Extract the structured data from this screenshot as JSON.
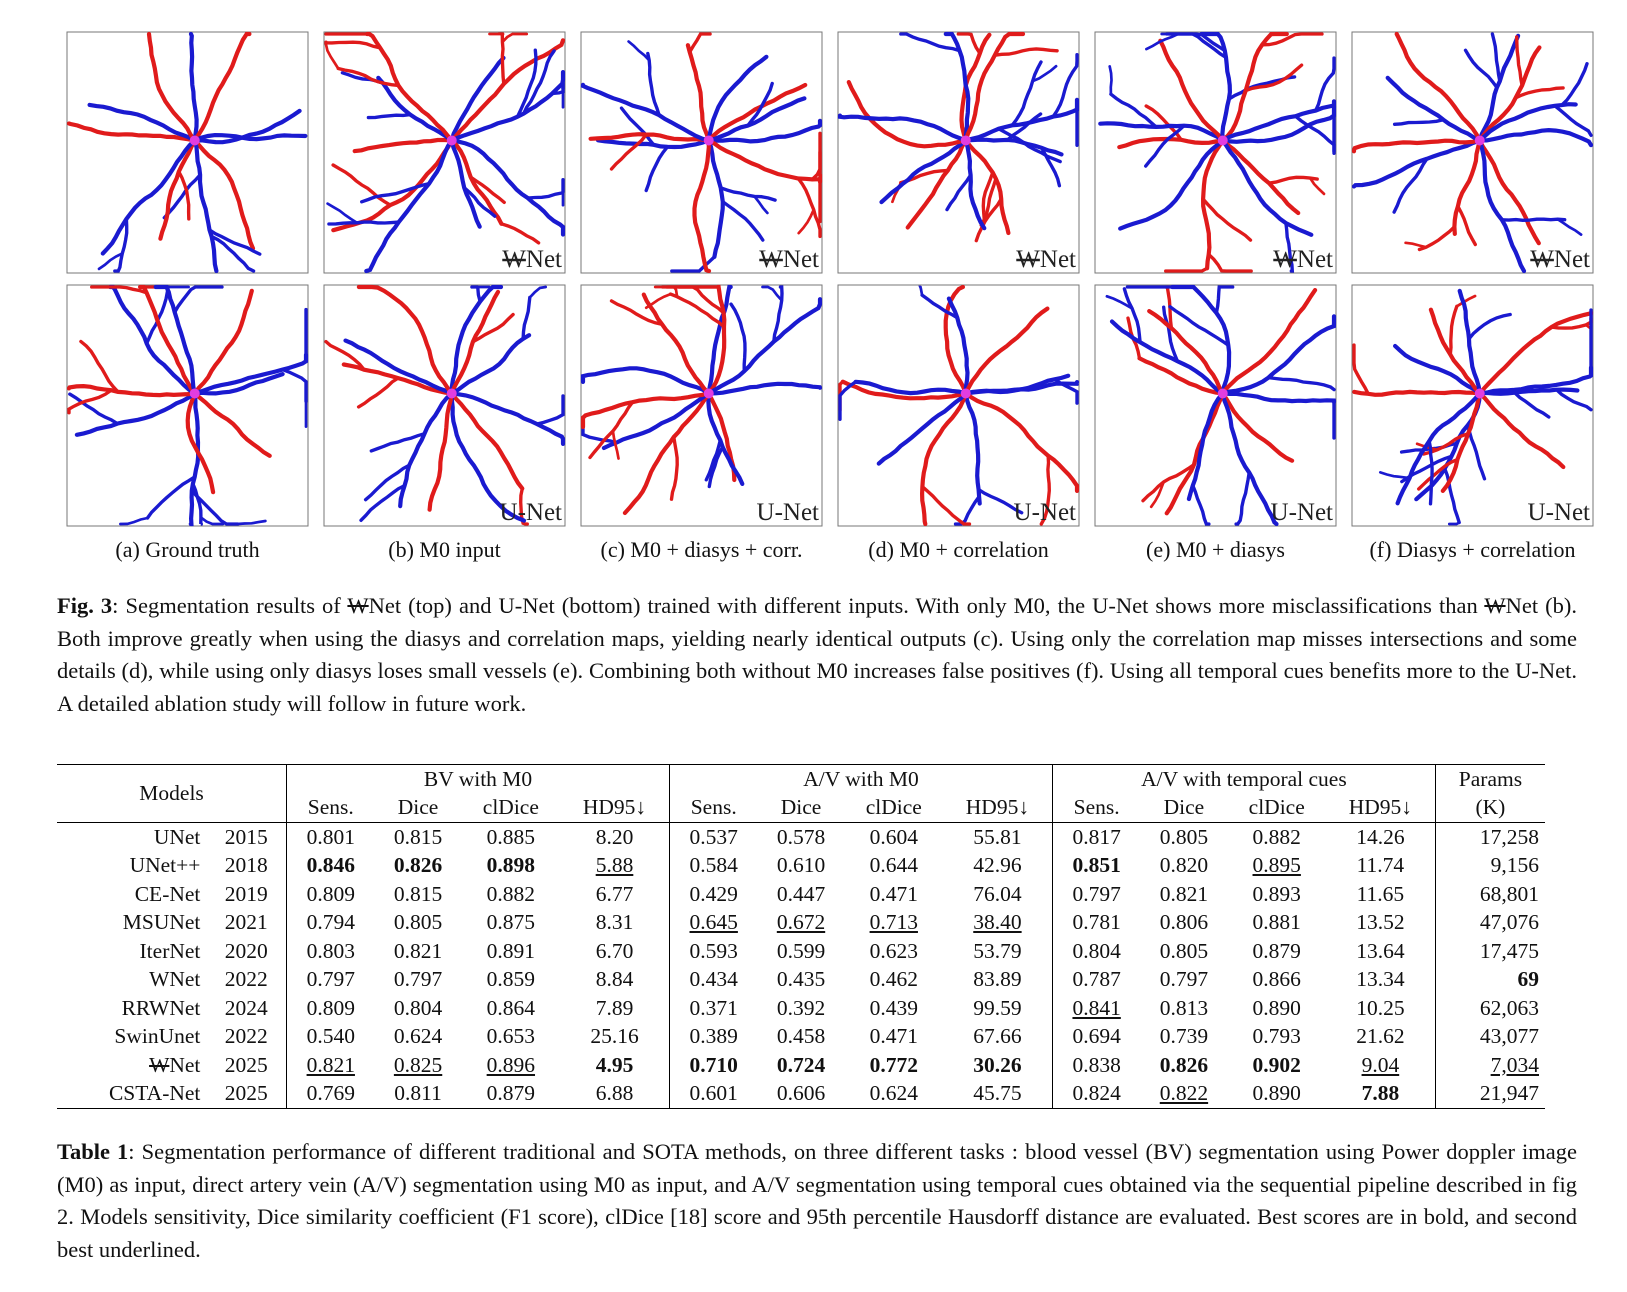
{
  "figure": {
    "panels": [
      {
        "caption": "(a) Ground truth"
      },
      {
        "caption": "(b) M0 input"
      },
      {
        "caption": "(c) M0 + diasys + corr."
      },
      {
        "caption": "(d) M0 + correlation"
      },
      {
        "caption": "(e) M0 + diasys"
      },
      {
        "caption": "(f) Diasys + correlation"
      }
    ],
    "labels": {
      "top": {
        "struck": "W",
        "rest": "Net"
      },
      "bottom": "U-Net"
    },
    "caption": {
      "label": "Fig. 3",
      "runs": [
        {
          "text": ": Segmentation results of "
        },
        {
          "struck": "W"
        },
        {
          "text": "Net (top) and U-Net (bottom) trained with different inputs. With only M0, the U-Net shows more misclassifications than "
        },
        {
          "struck": "W"
        },
        {
          "text": "Net (b). Both improve greatly when using the diasys and correlation maps, yielding nearly identical outputs (c). Using only the correlation map misses intersections and some details (d), while using only diasys loses small vessels (e). Combining both without M0 increases false positives (f). Using all temporal cues benefits more to the U-Net. A detailed ablation study will follow in future work."
        }
      ]
    }
  },
  "table": {
    "header": {
      "models": "Models",
      "groups": [
        {
          "title": "BV with M0",
          "columns": [
            "Sens.",
            "Dice",
            "clDice",
            "HD95↓"
          ]
        },
        {
          "title": "A/V with M0",
          "columns": [
            "Sens.",
            "Dice",
            "clDice",
            "HD95↓"
          ]
        },
        {
          "title": "A/V with temporal cues",
          "columns": [
            "Sens.",
            "Dice",
            "clDice",
            "HD95↓"
          ]
        }
      ],
      "params": [
        "Params",
        "(K)"
      ]
    },
    "rows": [
      {
        "model": "UNet",
        "year": "2015",
        "values": [
          "0.801",
          "0.815",
          "0.885",
          "8.20",
          "0.537",
          "0.578",
          "0.604",
          "55.81",
          "0.817",
          "0.805",
          "0.882",
          "14.26",
          "17,258"
        ]
      },
      {
        "model": "UNet++",
        "year": "2018",
        "values": [
          "0.846",
          "0.826",
          "0.898",
          "5.88",
          "0.584",
          "0.610",
          "0.644",
          "42.96",
          "0.851",
          "0.820",
          "0.895",
          "11.74",
          "9,156"
        ],
        "bold": [
          0,
          1,
          2,
          8
        ],
        "underline": [
          3,
          10
        ]
      },
      {
        "model": "CE-Net",
        "year": "2019",
        "values": [
          "0.809",
          "0.815",
          "0.882",
          "6.77",
          "0.429",
          "0.447",
          "0.471",
          "76.04",
          "0.797",
          "0.821",
          "0.893",
          "11.65",
          "68,801"
        ]
      },
      {
        "model": "MSUNet",
        "year": "2021",
        "values": [
          "0.794",
          "0.805",
          "0.875",
          "8.31",
          "0.645",
          "0.672",
          "0.713",
          "38.40",
          "0.781",
          "0.806",
          "0.881",
          "13.52",
          "47,076"
        ],
        "underline": [
          4,
          5,
          6,
          7
        ]
      },
      {
        "model": "IterNet",
        "year": "2020",
        "values": [
          "0.803",
          "0.821",
          "0.891",
          "6.70",
          "0.593",
          "0.599",
          "0.623",
          "53.79",
          "0.804",
          "0.805",
          "0.879",
          "13.64",
          "17,475"
        ]
      },
      {
        "model": "WNet",
        "year": "2022",
        "values": [
          "0.797",
          "0.797",
          "0.859",
          "8.84",
          "0.434",
          "0.435",
          "0.462",
          "83.89",
          "0.787",
          "0.797",
          "0.866",
          "13.34",
          "69"
        ],
        "bold": [
          12
        ]
      },
      {
        "model": "RRWNet",
        "year": "2024",
        "values": [
          "0.809",
          "0.804",
          "0.864",
          "7.89",
          "0.371",
          "0.392",
          "0.439",
          "99.59",
          "0.841",
          "0.813",
          "0.890",
          "10.25",
          "62,063"
        ],
        "underline": [
          8
        ]
      },
      {
        "model": "SwinUnet",
        "year": "2022",
        "values": [
          "0.540",
          "0.624",
          "0.653",
          "25.16",
          "0.389",
          "0.458",
          "0.471",
          "67.66",
          "0.694",
          "0.739",
          "0.793",
          "21.62",
          "43,077"
        ]
      },
      {
        "model": {
          "struck": "W",
          "rest": "Net"
        },
        "year": "2025",
        "values": [
          "0.821",
          "0.825",
          "0.896",
          "4.95",
          "0.710",
          "0.724",
          "0.772",
          "30.26",
          "0.838",
          "0.826",
          "0.902",
          "9.04",
          "7,034"
        ],
        "bold": [
          3,
          4,
          5,
          6,
          7,
          9,
          10
        ],
        "underline": [
          0,
          1,
          2,
          11,
          12
        ]
      },
      {
        "model": "CSTA-Net",
        "year": "2025",
        "values": [
          "0.769",
          "0.811",
          "0.879",
          "6.88",
          "0.601",
          "0.606",
          "0.624",
          "45.75",
          "0.824",
          "0.822",
          "0.890",
          "7.88",
          "21,947"
        ],
        "bold": [
          11
        ],
        "underline": [
          9
        ]
      }
    ],
    "caption": {
      "label": "Table 1",
      "text": ": Segmentation performance of different traditional and SOTA methods, on three different tasks : blood vessel (BV) segmentation using Power doppler image (M0) as input, direct artery vein (A/V) segmentation using M0 as input, and A/V segmentation using temporal cues obtained via the sequential pipeline described in fig 2. Models sensitivity, Dice similarity coefficient (F1 score), clDice [18] score and 95th percentile Hausdorff distance are evaluated. Best scores are in bold, and second best underlined."
    }
  }
}
